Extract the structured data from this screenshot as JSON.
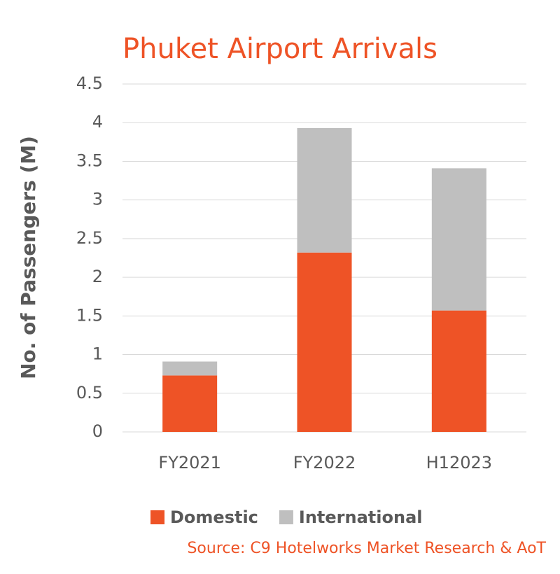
{
  "chart_data": {
    "type": "stacked_bar",
    "title": "Phuket Airport Arrivals",
    "y_label": "No. of Passengers (M)",
    "source": "Source: C9 Hotelworks Market Research & AoT",
    "categories": [
      "FY2021",
      "FY2022",
      "H12023"
    ],
    "series": [
      {
        "name": "Domestic",
        "color": "#ee5326",
        "values": [
          0.73,
          2.32,
          1.57
        ]
      },
      {
        "name": "International",
        "color": "#bfbfbf",
        "values": [
          0.18,
          1.61,
          1.84
        ]
      }
    ],
    "ylim": [
      0,
      4.5
    ],
    "yticks": [
      0,
      0.5,
      1,
      1.5,
      2,
      2.5,
      3,
      3.5,
      4,
      4.5
    ],
    "grid": true,
    "legend": "bottom"
  }
}
